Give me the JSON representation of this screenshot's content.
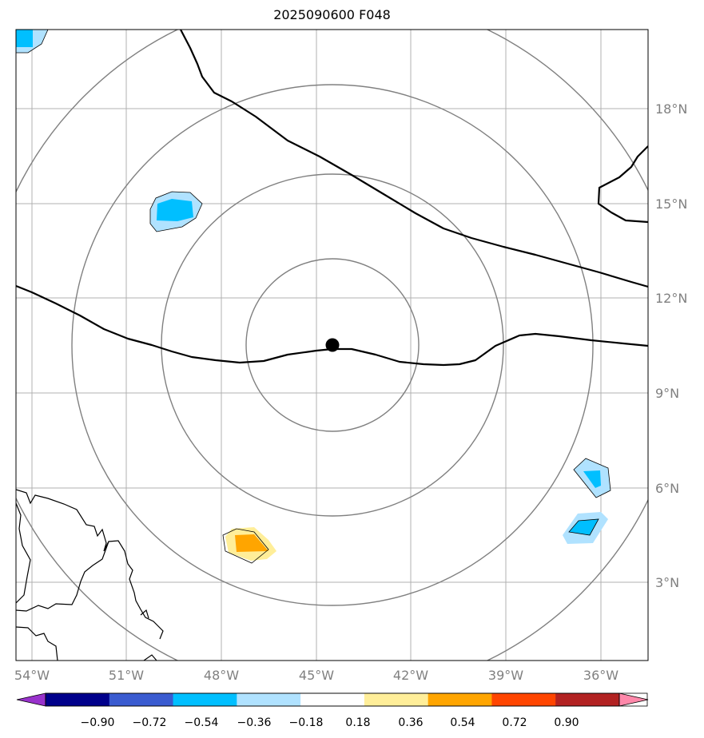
{
  "title": "2025090600 F048",
  "colors": {
    "grid": "#b0b0b0",
    "ring": "#808080",
    "coast": "#000000",
    "center": "#000000",
    "label": "#808080"
  },
  "lon_labels": [
    "54°W",
    "51°W",
    "48°W",
    "45°W",
    "42°W",
    "39°W",
    "36°W"
  ],
  "lat_labels": [
    "18°N",
    "15°N",
    "12°N",
    "9°N",
    "6°N",
    "3°N"
  ],
  "colorbar": {
    "colors": [
      "#9932CC",
      "#00008B",
      "#3A5BD0",
      "#00BFFF",
      "#B0E2FF",
      "#FFFFFF",
      "#FFEE99",
      "#FFA500",
      "#FF4500",
      "#B22222",
      "#FF88AA"
    ],
    "ticks": [
      "−0.90",
      "−0.72",
      "−0.54",
      "−0.36",
      "−0.18",
      "0.18",
      "0.36",
      "0.54",
      "0.72",
      "0.90"
    ]
  },
  "chart_data": {
    "type": "map",
    "lon_range": [
      -54.5,
      -34.5
    ],
    "lat_range": [
      0.2,
      20.2
    ],
    "center_marker": {
      "lon": -44.5,
      "lat": 10.4
    },
    "range_rings": 4,
    "anomaly_patches": [
      {
        "lon": -49.5,
        "lat": 14.8,
        "sign": "negative"
      },
      {
        "lon": -46.9,
        "lat": 4.1,
        "sign": "positive"
      },
      {
        "lon": -36.6,
        "lat": 6.3,
        "sign": "negative"
      },
      {
        "lon": -36.6,
        "lat": 4.6,
        "sign": "negative"
      },
      {
        "lon": -54.2,
        "lat": 20.0,
        "sign": "negative"
      }
    ]
  }
}
